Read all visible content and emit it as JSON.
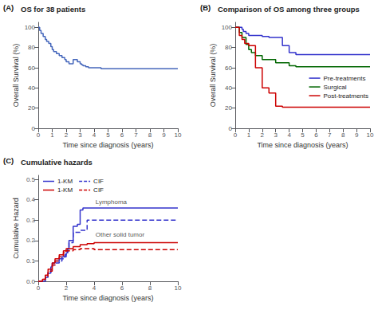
{
  "chart_data": [
    {
      "type": "step",
      "title": "OS for 38 patients",
      "xlabel": "Time since diagnosis (years)",
      "ylabel": "Overall Survival (%)",
      "xlim": [
        0,
        10
      ],
      "ylim": [
        0,
        105
      ],
      "xticks": [
        0,
        1,
        2,
        3,
        4,
        5,
        6,
        7,
        8,
        9,
        10
      ],
      "yticks": [
        0,
        20,
        40,
        60,
        80,
        100
      ],
      "grid": false,
      "annotations": [
        {
          "text": "(A)"
        }
      ],
      "series": [
        {
          "color": "#4466BB",
          "x": [
            0,
            0.1,
            0.2,
            0.35,
            0.5,
            0.6,
            0.75,
            0.9,
            1.0,
            1.1,
            1.3,
            1.5,
            1.7,
            1.9,
            2.0,
            2.2,
            2.5,
            2.8,
            3.0,
            3.1,
            3.2,
            3.4,
            3.6,
            4.0,
            4.5,
            10
          ],
          "values": [
            100,
            97,
            94,
            91,
            88,
            86,
            84,
            81,
            78,
            76,
            74,
            72,
            70,
            68,
            66,
            64,
            68,
            66,
            64,
            63,
            62,
            61,
            60,
            60,
            59,
            59
          ]
        }
      ]
    },
    {
      "type": "step",
      "title": "Comparison of OS among three groups",
      "xlabel": "Time since diagnosis (years)",
      "ylabel": "Overall Survival (%)",
      "xlim": [
        0,
        10
      ],
      "ylim": [
        0,
        105
      ],
      "xticks": [
        0,
        1,
        2,
        3,
        4,
        5,
        6,
        7,
        8,
        9,
        10
      ],
      "yticks": [
        0,
        20,
        40,
        60,
        80,
        100
      ],
      "grid": false,
      "legend": "lower right",
      "annotations": [
        {
          "text": "(B)"
        }
      ],
      "series": [
        {
          "name": "Pre-treatments",
          "color": "#3333CC",
          "x": [
            0,
            0.4,
            0.5,
            0.6,
            0.8,
            1.0,
            2.0,
            2.5,
            3.5,
            4.0,
            4.5,
            10
          ],
          "values": [
            100,
            100,
            98,
            96,
            94,
            92,
            91,
            90,
            82,
            75,
            73,
            73
          ]
        },
        {
          "name": "Surgical",
          "color": "#006600",
          "x": [
            0,
            0.3,
            0.5,
            0.8,
            1.0,
            1.2,
            1.5,
            2.0,
            3.0,
            4.0,
            4.5,
            10
          ],
          "values": [
            100,
            95,
            90,
            83,
            78,
            75,
            72,
            68,
            65,
            62,
            61,
            61
          ]
        },
        {
          "name": "Post-treatments",
          "color": "#CC0000",
          "x": [
            0,
            0.3,
            0.5,
            0.7,
            1.0,
            1.5,
            2.0,
            2.5,
            3.0,
            3.5,
            10
          ],
          "values": [
            100,
            92,
            88,
            84,
            82,
            60,
            40,
            35,
            22,
            21,
            21
          ]
        }
      ]
    },
    {
      "type": "step",
      "title": "Cumulative hazards",
      "xlabel": "Time since diagnosis (years)",
      "ylabel": "Cumulative Hazard",
      "xlim": [
        0,
        10
      ],
      "ylim": [
        0,
        0.52
      ],
      "xticks": [
        0,
        2,
        4,
        6,
        8,
        10
      ],
      "yticks": [
        {
          "value": 0.0,
          "label": "0.0"
        },
        0.1,
        0.2,
        0.3,
        0.4,
        0.5
      ],
      "grid": false,
      "legend": "upper left",
      "annotations": [
        {
          "text": "(C)"
        },
        {
          "text": "Lymphoma",
          "x": 4.1,
          "y": 0.365
        },
        {
          "text": "Other solid tumor",
          "x": 4.1,
          "y": 0.205
        }
      ],
      "series": [
        {
          "name": "1-KM",
          "color": "#3333CC",
          "line_style": "solid",
          "x": [
            0,
            0.5,
            0.7,
            0.9,
            1.0,
            1.2,
            1.5,
            1.7,
            1.9,
            2.0,
            2.1,
            2.2,
            2.5,
            2.8,
            3.0,
            3.2,
            4.0,
            10
          ],
          "values": [
            0,
            0.02,
            0.04,
            0.07,
            0.09,
            0.1,
            0.11,
            0.12,
            0.13,
            0.14,
            0.16,
            0.2,
            0.27,
            0.28,
            0.35,
            0.36,
            0.36,
            0.36
          ]
        },
        {
          "name": "CIF",
          "color": "#3333CC",
          "line_style": "dashed",
          "x": [
            0,
            0.5,
            0.7,
            0.9,
            1.0,
            1.2,
            1.5,
            1.7,
            1.9,
            2.0,
            2.1,
            2.2,
            2.5,
            3.0,
            3.5,
            4.0,
            10
          ],
          "values": [
            0,
            0.02,
            0.04,
            0.06,
            0.08,
            0.09,
            0.1,
            0.11,
            0.12,
            0.13,
            0.15,
            0.19,
            0.24,
            0.25,
            0.3,
            0.3,
            0.3
          ]
        },
        {
          "name": "1-KM",
          "color": "#CC0000",
          "line_style": "solid",
          "x": [
            0,
            0.3,
            0.5,
            0.7,
            1.0,
            1.2,
            1.5,
            1.8,
            2.0,
            2.5,
            3.0,
            3.5,
            4.0,
            10
          ],
          "values": [
            0,
            0.01,
            0.03,
            0.06,
            0.09,
            0.11,
            0.13,
            0.15,
            0.16,
            0.17,
            0.18,
            0.185,
            0.19,
            0.19
          ]
        },
        {
          "name": "CIF",
          "color": "#CC0000",
          "line_style": "dashed",
          "x": [
            0,
            0.3,
            0.5,
            0.7,
            1.0,
            1.2,
            1.5,
            1.8,
            2.0,
            2.5,
            3.0,
            3.5,
            4.0,
            10
          ],
          "values": [
            0,
            0.01,
            0.02,
            0.05,
            0.08,
            0.1,
            0.12,
            0.14,
            0.15,
            0.155,
            0.16,
            0.16,
            0.155,
            0.155
          ]
        }
      ]
    }
  ]
}
